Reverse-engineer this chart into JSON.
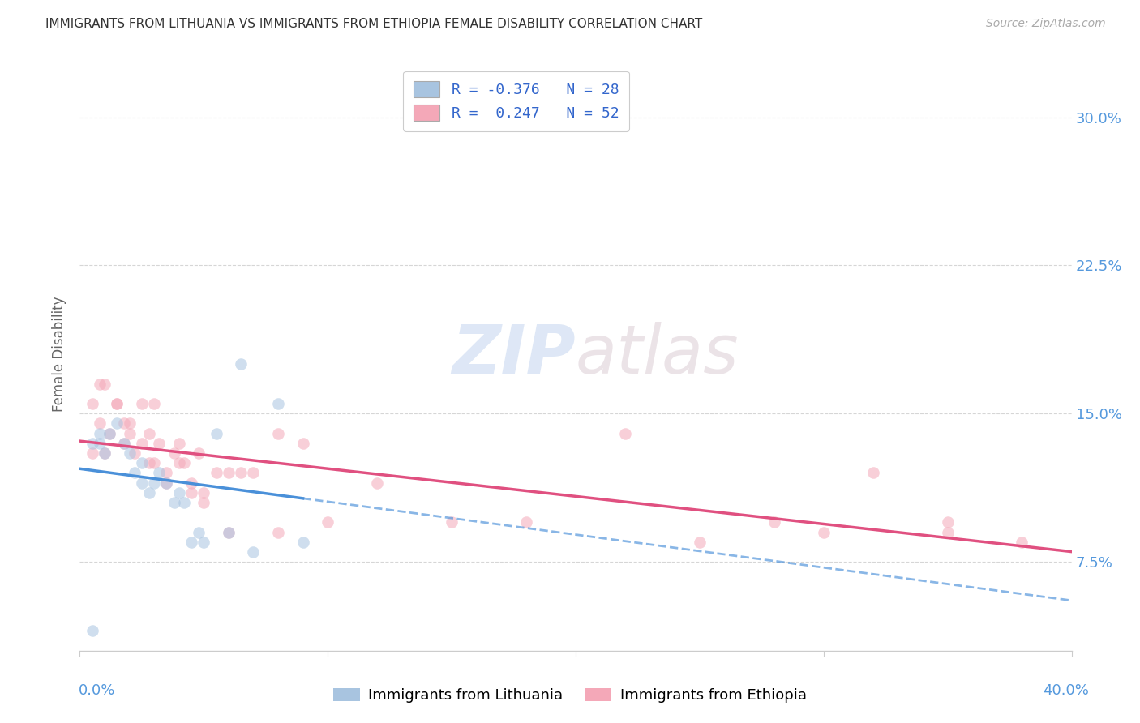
{
  "title": "IMMIGRANTS FROM LITHUANIA VS IMMIGRANTS FROM ETHIOPIA FEMALE DISABILITY CORRELATION CHART",
  "source": "Source: ZipAtlas.com",
  "ylabel": "Female Disability",
  "ytick_labels": [
    "7.5%",
    "15.0%",
    "22.5%",
    "30.0%"
  ],
  "ytick_values": [
    0.075,
    0.15,
    0.225,
    0.3
  ],
  "xlim": [
    0.0,
    0.4
  ],
  "ylim": [
    0.03,
    0.33
  ],
  "color_lithuania": "#a8c4e0",
  "color_ethiopia": "#f4a8b8",
  "line_color_lithuania": "#4a90d9",
  "line_color_ethiopia": "#e05080",
  "watermark_zip": "ZIP",
  "watermark_atlas": "atlas",
  "lithuania_x": [
    0.005,
    0.008,
    0.01,
    0.012,
    0.015,
    0.018,
    0.02,
    0.022,
    0.025,
    0.025,
    0.028,
    0.03,
    0.032,
    0.035,
    0.038,
    0.04,
    0.042,
    0.045,
    0.048,
    0.05,
    0.055,
    0.06,
    0.065,
    0.07,
    0.08,
    0.09,
    0.005,
    0.008
  ],
  "lithuania_y": [
    0.135,
    0.14,
    0.13,
    0.14,
    0.145,
    0.135,
    0.13,
    0.12,
    0.125,
    0.115,
    0.11,
    0.115,
    0.12,
    0.115,
    0.105,
    0.11,
    0.105,
    0.085,
    0.09,
    0.085,
    0.14,
    0.09,
    0.175,
    0.08,
    0.155,
    0.085,
    0.04,
    0.135
  ],
  "ethiopia_x": [
    0.005,
    0.008,
    0.01,
    0.012,
    0.015,
    0.018,
    0.02,
    0.022,
    0.025,
    0.028,
    0.03,
    0.032,
    0.035,
    0.038,
    0.04,
    0.042,
    0.045,
    0.048,
    0.05,
    0.055,
    0.06,
    0.065,
    0.07,
    0.08,
    0.09,
    0.1,
    0.12,
    0.15,
    0.18,
    0.22,
    0.25,
    0.28,
    0.3,
    0.32,
    0.35,
    0.38,
    0.005,
    0.008,
    0.01,
    0.015,
    0.018,
    0.02,
    0.025,
    0.028,
    0.03,
    0.035,
    0.04,
    0.045,
    0.05,
    0.06,
    0.08,
    0.35
  ],
  "ethiopia_y": [
    0.13,
    0.145,
    0.13,
    0.14,
    0.155,
    0.135,
    0.145,
    0.13,
    0.135,
    0.14,
    0.125,
    0.135,
    0.12,
    0.13,
    0.135,
    0.125,
    0.115,
    0.13,
    0.11,
    0.12,
    0.12,
    0.12,
    0.12,
    0.14,
    0.135,
    0.095,
    0.115,
    0.095,
    0.095,
    0.14,
    0.085,
    0.095,
    0.09,
    0.12,
    0.095,
    0.085,
    0.155,
    0.165,
    0.165,
    0.155,
    0.145,
    0.14,
    0.155,
    0.125,
    0.155,
    0.115,
    0.125,
    0.11,
    0.105,
    0.09,
    0.09,
    0.09
  ],
  "scatter_size": 110,
  "scatter_alpha": 0.55,
  "grid_color": "#cccccc",
  "background_color": "#ffffff"
}
